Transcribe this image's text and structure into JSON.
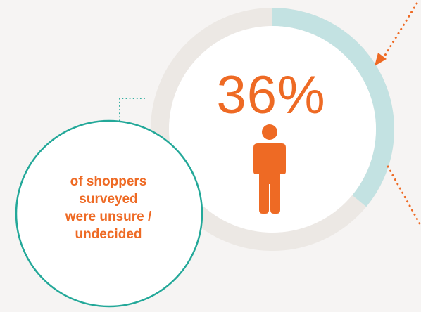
{
  "stat": {
    "value": "36%",
    "fraction": 0.36
  },
  "caption": {
    "lines": [
      "of shoppers",
      "surveyed",
      "were unsure /",
      "undecided"
    ]
  },
  "icons": {
    "figure": "person-icon"
  },
  "colors": {
    "background": "#f6f4f3",
    "ring_track": "#ece8e4",
    "ring_fill": "#c3e2e2",
    "accent": "#ee6a24",
    "teal": "#23a899"
  }
}
